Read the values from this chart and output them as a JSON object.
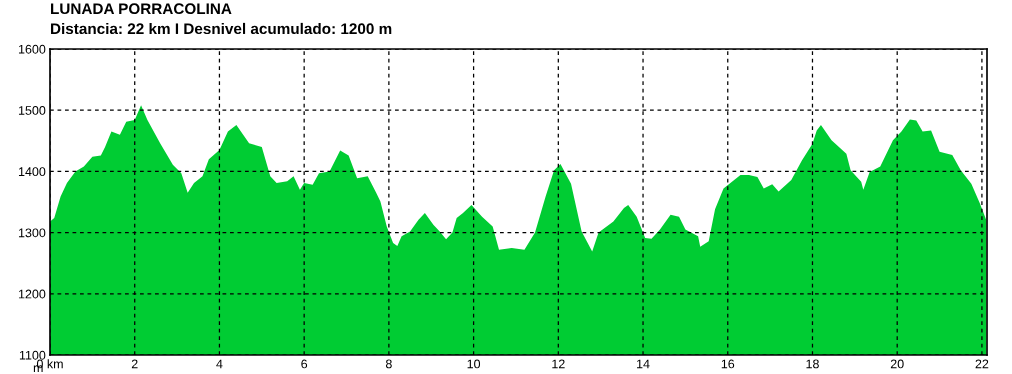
{
  "chart_data": {
    "type": "area",
    "title": "LUNADA PORRACOLINA",
    "subtitle": "Distancia: 22 km I Desnivel acumulado: 1200 m",
    "ylabel": "m",
    "series": [
      {
        "color": "#00cc33",
        "x": [
          0,
          0.1,
          0.25,
          0.4,
          0.6,
          0.8,
          1.0,
          1.2,
          1.3,
          1.45,
          1.65,
          1.8,
          2.0,
          2.15,
          2.3,
          2.6,
          2.9,
          3.1,
          3.25,
          3.4,
          3.6,
          3.75,
          4.0,
          4.2,
          4.4,
          4.7,
          5.0,
          5.2,
          5.35,
          5.6,
          5.75,
          5.9,
          6.0,
          6.2,
          6.35,
          6.6,
          6.85,
          7.05,
          7.25,
          7.5,
          7.7,
          7.8,
          7.95,
          8.1,
          8.2,
          8.3,
          8.5,
          8.7,
          8.85,
          9.05,
          9.2,
          9.35,
          9.5,
          9.6,
          9.75,
          9.95,
          10.2,
          10.45,
          10.6,
          10.9,
          11.2,
          11.45,
          11.7,
          11.9,
          12.05,
          12.3,
          12.55,
          12.8,
          12.95,
          13.3,
          13.55,
          13.65,
          13.85,
          14.05,
          14.2,
          14.4,
          14.65,
          14.85,
          15.0,
          15.3,
          15.35,
          15.55,
          15.7,
          15.9,
          16.1,
          16.3,
          16.5,
          16.7,
          16.85,
          17.05,
          17.2,
          17.5,
          17.75,
          18.0,
          18.1,
          18.2,
          18.45,
          18.8,
          18.9,
          19.15,
          19.2,
          19.35,
          19.6,
          19.9,
          20.1,
          20.3,
          20.45,
          20.6,
          20.8,
          21.0,
          21.3,
          21.5,
          21.75,
          21.95,
          22.1
        ],
        "values": [
          1318,
          1324,
          1359,
          1381,
          1400,
          1408,
          1424,
          1426,
          1440,
          1465,
          1460,
          1481,
          1484,
          1508,
          1484,
          1446,
          1411,
          1397,
          1365,
          1381,
          1392,
          1420,
          1435,
          1465,
          1476,
          1446,
          1440,
          1392,
          1381,
          1384,
          1392,
          1370,
          1381,
          1378,
          1397,
          1400,
          1434,
          1426,
          1389,
          1392,
          1365,
          1351,
          1310,
          1283,
          1278,
          1294,
          1302,
          1321,
          1332,
          1313,
          1302,
          1289,
          1300,
          1324,
          1332,
          1345,
          1326,
          1310,
          1272,
          1275,
          1272,
          1300,
          1359,
          1402,
          1412,
          1380,
          1302,
          1269,
          1300,
          1318,
          1340,
          1345,
          1326,
          1291,
          1290,
          1305,
          1329,
          1326,
          1305,
          1294,
          1277,
          1286,
          1338,
          1372,
          1383,
          1394,
          1394,
          1391,
          1372,
          1379,
          1367,
          1386,
          1418,
          1445,
          1467,
          1476,
          1451,
          1429,
          1402,
          1383,
          1370,
          1399,
          1408,
          1451,
          1465,
          1485,
          1483,
          1465,
          1467,
          1432,
          1427,
          1402,
          1380,
          1348,
          1321
        ]
      }
    ],
    "xlim": [
      0,
      22.12
    ],
    "ylim": [
      1100,
      1600
    ],
    "xticks": [
      {
        "value": 0,
        "label": "0 km"
      },
      2,
      4,
      6,
      8,
      10,
      12,
      14,
      16,
      18,
      20,
      22
    ],
    "yticks": [
      1100,
      1200,
      1300,
      1400,
      1500,
      1600
    ],
    "grid": true,
    "line_style": "dashed"
  }
}
